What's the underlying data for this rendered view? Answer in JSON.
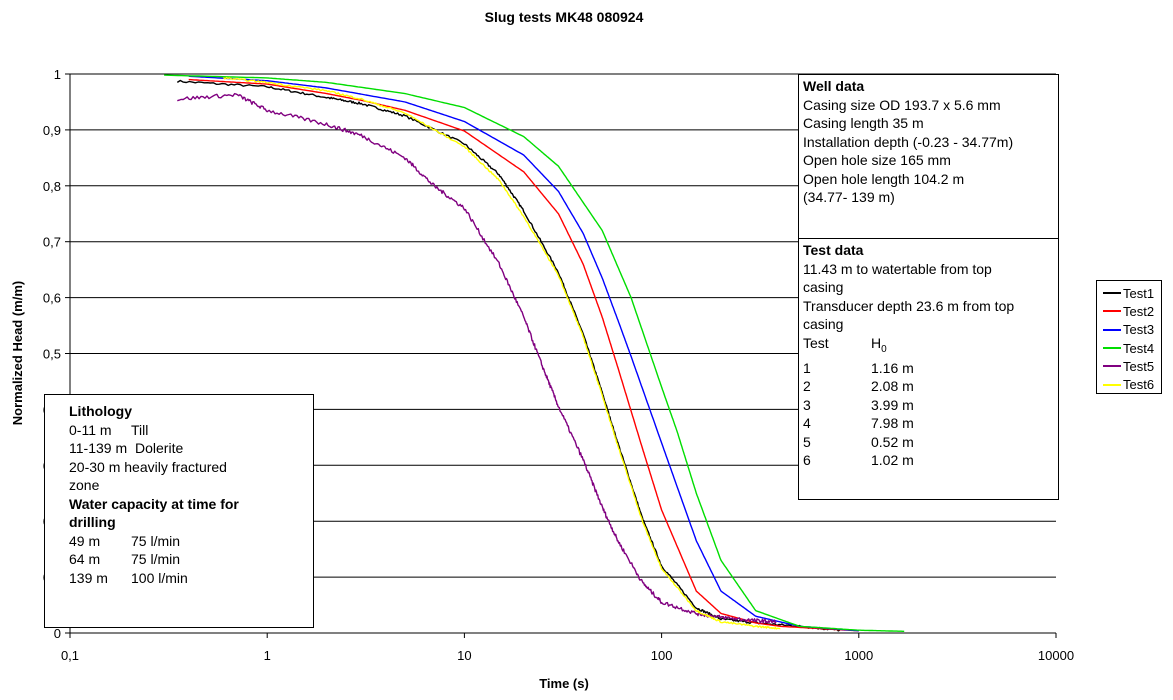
{
  "chart_data": {
    "type": "line",
    "title": "Slug tests MK48 080924",
    "xlabel": "Time (s)",
    "ylabel": "Normalized Head (m/m)",
    "x_scale": "log",
    "xlim": [
      0.1,
      10000
    ],
    "ylim": [
      0,
      1
    ],
    "x_ticks": [
      "0,1",
      "1",
      "10",
      "100",
      "1000",
      "10000"
    ],
    "y_ticks": [
      "0",
      "0,1",
      "0,2",
      "0,3",
      "0,4",
      "0,5",
      "0,6",
      "0,7",
      "0,8",
      "0,9",
      "1"
    ],
    "grid": "horizontal",
    "legend_position": "right",
    "series": [
      {
        "name": "Test1",
        "color": "#000000",
        "x": [
          0.35,
          1,
          2,
          3,
          5,
          10,
          15,
          20,
          30,
          40,
          50,
          60,
          80,
          100,
          150,
          200,
          300,
          500,
          800
        ],
        "y": [
          0.987,
          0.977,
          0.958,
          0.947,
          0.925,
          0.875,
          0.82,
          0.755,
          0.645,
          0.535,
          0.43,
          0.34,
          0.205,
          0.12,
          0.045,
          0.025,
          0.018,
          0.012,
          0.005
        ],
        "noise": 0.004
      },
      {
        "name": "Test2",
        "color": "#ff0000",
        "x": [
          0.4,
          1,
          2,
          3,
          5,
          10,
          20,
          30,
          40,
          50,
          60,
          80,
          100,
          150,
          200,
          300,
          400,
          700,
          1000
        ],
        "y": [
          0.99,
          0.982,
          0.965,
          0.953,
          0.935,
          0.898,
          0.825,
          0.75,
          0.66,
          0.565,
          0.475,
          0.33,
          0.22,
          0.075,
          0.035,
          0.018,
          0.012,
          0.007,
          0.004
        ],
        "noise": 0.0
      },
      {
        "name": "Test3",
        "color": "#0000ff",
        "x": [
          0.4,
          1,
          2,
          5,
          10,
          20,
          30,
          40,
          50,
          60,
          70,
          100,
          150,
          200,
          300,
          500,
          1000
        ],
        "y": [
          0.996,
          0.988,
          0.975,
          0.95,
          0.915,
          0.855,
          0.79,
          0.715,
          0.635,
          0.56,
          0.495,
          0.34,
          0.165,
          0.075,
          0.03,
          0.012,
          0.004
        ],
        "noise": 0.0
      },
      {
        "name": "Test4",
        "color": "#00dd00",
        "x": [
          0.3,
          1,
          2,
          5,
          10,
          20,
          30,
          50,
          70,
          100,
          120,
          150,
          200,
          300,
          500,
          1000,
          1700
        ],
        "y": [
          0.998,
          0.993,
          0.985,
          0.965,
          0.94,
          0.888,
          0.835,
          0.72,
          0.6,
          0.44,
          0.36,
          0.25,
          0.13,
          0.04,
          0.012,
          0.005,
          0.003
        ],
        "noise": 0.0
      },
      {
        "name": "Test5",
        "color": "#800080",
        "x": [
          0.35,
          0.7,
          1,
          2,
          3,
          5,
          7,
          10,
          15,
          20,
          25,
          30,
          40,
          50,
          60,
          80,
          100,
          150,
          200,
          300,
          380
        ],
        "y": [
          0.955,
          0.963,
          0.935,
          0.91,
          0.89,
          0.85,
          0.8,
          0.76,
          0.66,
          0.565,
          0.475,
          0.405,
          0.31,
          0.225,
          0.165,
          0.09,
          0.055,
          0.035,
          0.028,
          0.022,
          0.02
        ],
        "noise": 0.007
      },
      {
        "name": "Test6",
        "color": "#ffff00",
        "x": [
          0.6,
          1,
          2,
          3,
          5,
          10,
          15,
          20,
          30,
          40,
          50,
          60,
          80,
          100,
          150,
          200,
          300,
          400
        ],
        "y": [
          0.993,
          0.985,
          0.97,
          0.955,
          0.93,
          0.87,
          0.81,
          0.745,
          0.64,
          0.53,
          0.425,
          0.335,
          0.2,
          0.115,
          0.04,
          0.02,
          0.012,
          0.008
        ],
        "noise": 0.003
      }
    ]
  },
  "well_box": {
    "heading": "Well data",
    "lines": [
      "Casing size OD 193.7 x 5.6 mm",
      "Casing length 35 m",
      "Installation depth (-0.23 - 34.77m)",
      "Open hole size 165 mm",
      "Open hole length 104.2 m",
      "(34.77- 139 m)"
    ]
  },
  "test_box": {
    "heading": "Test data",
    "lines": [
      "11.43 m to watertable from top",
      "casing",
      "Transducer depth 23.6 m from top",
      "casing"
    ],
    "col_test": "Test",
    "col_h0_main": "H",
    "col_h0_sub": "0",
    "rows": [
      {
        "test": "1",
        "h0": "1.16 m"
      },
      {
        "test": "2",
        "h0": "2.08 m"
      },
      {
        "test": "3",
        "h0": "3.99 m"
      },
      {
        "test": "4",
        "h0": "7.98 m"
      },
      {
        "test": "5",
        "h0": "0.52 m"
      },
      {
        "test": "6",
        "h0": "1.02 m"
      }
    ]
  },
  "lithology_box": {
    "heading": "Lithology",
    "rows": [
      {
        "depth": "0-11 m",
        "rock": "Till"
      },
      {
        "depth": "11-139 m",
        "rock": "Dolerite"
      }
    ],
    "fracture_lines": [
      "20-30 m heavily fractured",
      "zone"
    ],
    "capacity_heading_lines": [
      "Water capacity at time for",
      "drilling"
    ],
    "capacity_rows": [
      {
        "depth": "49 m",
        "rate": "75 l/min"
      },
      {
        "depth": "64 m",
        "rate": "75 l/min"
      },
      {
        "depth": "139 m",
        "rate": "100 l/min"
      }
    ]
  }
}
